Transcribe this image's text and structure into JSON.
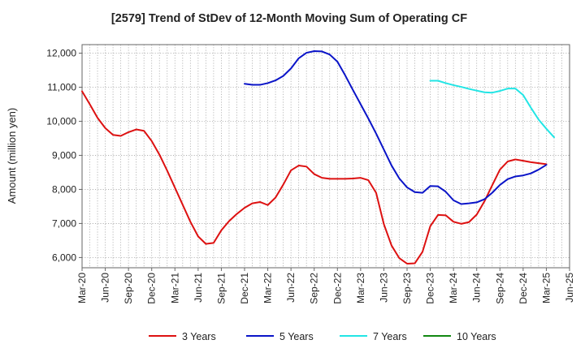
{
  "chart_data": {
    "type": "line",
    "title": "[2579]  Trend of StDev of 12-Month Moving Sum of Operating CF",
    "xlabel": "",
    "ylabel": "Amount (million yen)",
    "ylim": [
      5700,
      12250
    ],
    "yticks": [
      6000,
      7000,
      8000,
      9000,
      10000,
      11000,
      12000
    ],
    "ytick_labels": [
      "6,000",
      "7,000",
      "8,000",
      "9,000",
      "10,000",
      "11,000",
      "12,000"
    ],
    "x_start": "Mar-20",
    "x_tick_labels": [
      "Mar-20",
      "Jun-20",
      "Sep-20",
      "Dec-20",
      "Mar-21",
      "Jun-21",
      "Sep-21",
      "Dec-21",
      "Mar-22",
      "Jun-22",
      "Sep-22",
      "Dec-22",
      "Mar-23",
      "Jun-23",
      "Sep-23",
      "Dec-23",
      "Mar-24",
      "Jun-24",
      "Sep-24",
      "Dec-24",
      "Mar-25",
      "Jun-25"
    ],
    "grid": true,
    "legend_position": "bottom",
    "series": [
      {
        "name": "3 Years",
        "color": "#dd1111",
        "start_month": 0,
        "values": [
          10880,
          10500,
          10100,
          9800,
          9600,
          9570,
          9680,
          9760,
          9720,
          9420,
          9020,
          8550,
          8050,
          7550,
          7050,
          6620,
          6400,
          6430,
          6800,
          7070,
          7280,
          7460,
          7590,
          7630,
          7540,
          7760,
          8140,
          8560,
          8700,
          8670,
          8450,
          8340,
          8310,
          8310,
          8310,
          8320,
          8340,
          8270,
          7900,
          6980,
          6350,
          5980,
          5820,
          5830,
          6170,
          6920,
          7250,
          7240,
          7050,
          6990,
          7040,
          7260,
          7650,
          8120,
          8580,
          8820,
          8880,
          8840,
          8800,
          8770,
          8740
        ]
      },
      {
        "name": "5 Years",
        "color": "#0a14c8",
        "start_month": 21,
        "values": [
          11100,
          11070,
          11070,
          11120,
          11200,
          11330,
          11550,
          11850,
          12010,
          12060,
          12050,
          11960,
          11750,
          11350,
          10920,
          10500,
          10080,
          9640,
          9170,
          8700,
          8320,
          8060,
          7920,
          7900,
          8100,
          8090,
          7930,
          7680,
          7570,
          7590,
          7620,
          7710,
          7900,
          8130,
          8300,
          8380,
          8410,
          8470,
          8580,
          8720
        ]
      },
      {
        "name": "7 Years",
        "color": "#22e5e5",
        "start_month": 45,
        "values": [
          11190,
          11190,
          11120,
          11060,
          11010,
          10950,
          10900,
          10850,
          10840,
          10890,
          10960,
          10960,
          10770,
          10400,
          10050,
          9780,
          9530
        ]
      },
      {
        "name": "10 Years",
        "color": "#118811",
        "start_month": 0,
        "values": []
      }
    ]
  }
}
